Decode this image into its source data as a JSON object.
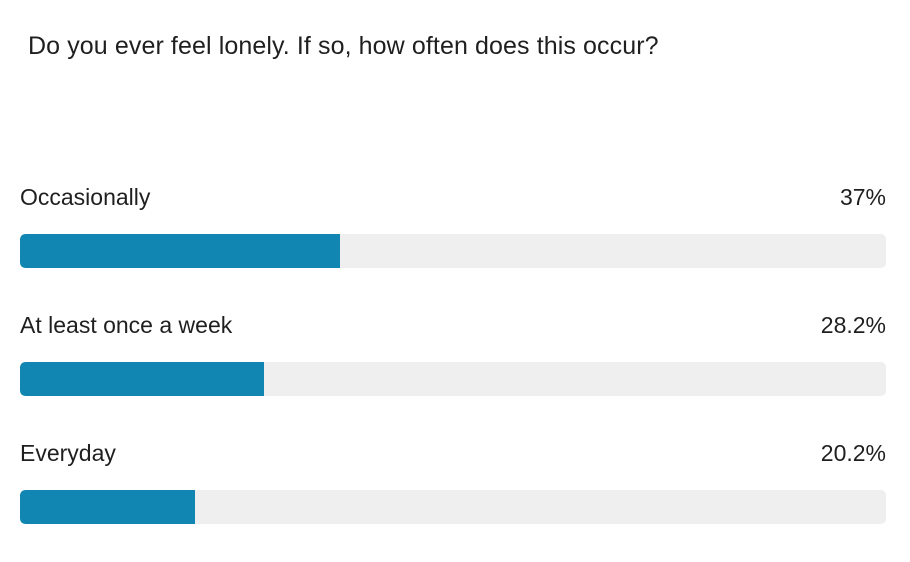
{
  "question": "Do you ever feel lonely. If so, how often does this occur?",
  "colors": {
    "bar_fill": "#1186b2",
    "bar_track": "#efefef",
    "text": "#1f1f1f"
  },
  "chart_data": {
    "type": "bar",
    "orientation": "horizontal",
    "title": "Do you ever feel lonely. If so, how often does this occur?",
    "categories": [
      "Occasionally",
      "At least once a week",
      "Everyday"
    ],
    "values": [
      37,
      28.2,
      20.2
    ],
    "value_labels": [
      "37%",
      "28.2%",
      "20.2%"
    ],
    "unit": "%",
    "xlim": [
      0,
      100
    ],
    "grid": false,
    "legend": "none"
  }
}
